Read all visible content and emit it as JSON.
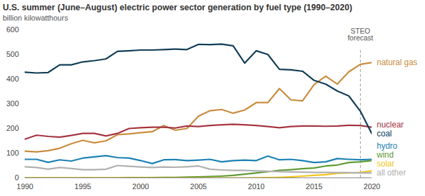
{
  "chart_data": {
    "type": "line",
    "title": "U.S. summer (June–August) electric power sector generation by fuel type (1990–2020)",
    "subtitle": "billion kilowatthours",
    "x": [
      1990,
      1991,
      1992,
      1993,
      1994,
      1995,
      1996,
      1997,
      1998,
      1999,
      2000,
      2001,
      2002,
      2003,
      2004,
      2005,
      2006,
      2007,
      2008,
      2009,
      2010,
      2011,
      2012,
      2013,
      2014,
      2015,
      2016,
      2017,
      2018,
      2019,
      2020
    ],
    "xlim": [
      1990,
      2020
    ],
    "xticks": [
      1990,
      1995,
      2000,
      2005,
      2010,
      2015,
      2020
    ],
    "ylim": [
      0,
      600
    ],
    "yticks": [
      0,
      100,
      200,
      300,
      400,
      500,
      600
    ],
    "grid": false,
    "annotations": [
      {
        "text": "STEO\nforecast",
        "x": 2019
      }
    ],
    "series": [
      {
        "name": "natural gas",
        "color": "#c98b3b",
        "values": [
          108,
          105,
          110,
          120,
          138,
          152,
          142,
          150,
          175,
          178,
          183,
          187,
          212,
          193,
          200,
          250,
          272,
          277,
          262,
          275,
          305,
          305,
          362,
          316,
          312,
          378,
          412,
          380,
          430,
          460,
          467
        ]
      },
      {
        "name": "nuclear",
        "color": "#a5333f",
        "values": [
          157,
          173,
          168,
          165,
          172,
          180,
          180,
          170,
          180,
          200,
          203,
          205,
          205,
          202,
          210,
          208,
          212,
          215,
          217,
          215,
          212,
          208,
          203,
          208,
          210,
          210,
          209,
          210,
          213,
          212,
          205
        ]
      },
      {
        "name": "coal",
        "color": "#0f3b55",
        "values": [
          428,
          425,
          427,
          458,
          458,
          470,
          475,
          482,
          513,
          515,
          518,
          518,
          520,
          522,
          520,
          541,
          540,
          542,
          535,
          465,
          515,
          500,
          440,
          438,
          432,
          395,
          380,
          352,
          332,
          270,
          178
        ]
      },
      {
        "name": "hydro",
        "color": "#1a80b3",
        "values": [
          75,
          75,
          63,
          73,
          68,
          80,
          85,
          90,
          82,
          80,
          70,
          58,
          73,
          74,
          70,
          72,
          75,
          65,
          70,
          72,
          70,
          88,
          73,
          75,
          70,
          62,
          65,
          78,
          75,
          73,
          75
        ]
      },
      {
        "name": "wind",
        "color": "#5e9a33",
        "values": [
          0,
          0,
          0,
          0,
          0,
          0,
          0,
          0,
          0,
          1,
          1,
          1,
          2,
          2,
          3,
          4,
          5,
          7,
          10,
          15,
          20,
          25,
          30,
          33,
          37,
          40,
          48,
          52,
          62,
          65,
          70
        ]
      },
      {
        "name": "solar",
        "color": "#f2c418",
        "values": [
          0,
          0,
          0,
          0,
          0,
          0,
          0,
          0,
          0,
          0,
          0,
          0,
          0,
          0,
          0,
          0,
          0,
          0,
          0,
          0,
          0.5,
          1,
          2,
          4,
          7,
          10,
          13,
          18,
          20,
          22,
          28
        ]
      },
      {
        "name": "all other",
        "color": "#b0b0b0",
        "values": [
          45,
          42,
          35,
          42,
          38,
          33,
          33,
          35,
          50,
          47,
          44,
          42,
          44,
          43,
          45,
          48,
          35,
          32,
          30,
          30,
          28,
          27,
          25,
          24,
          23,
          22,
          22,
          21,
          21,
          20,
          20
        ]
      }
    ]
  }
}
